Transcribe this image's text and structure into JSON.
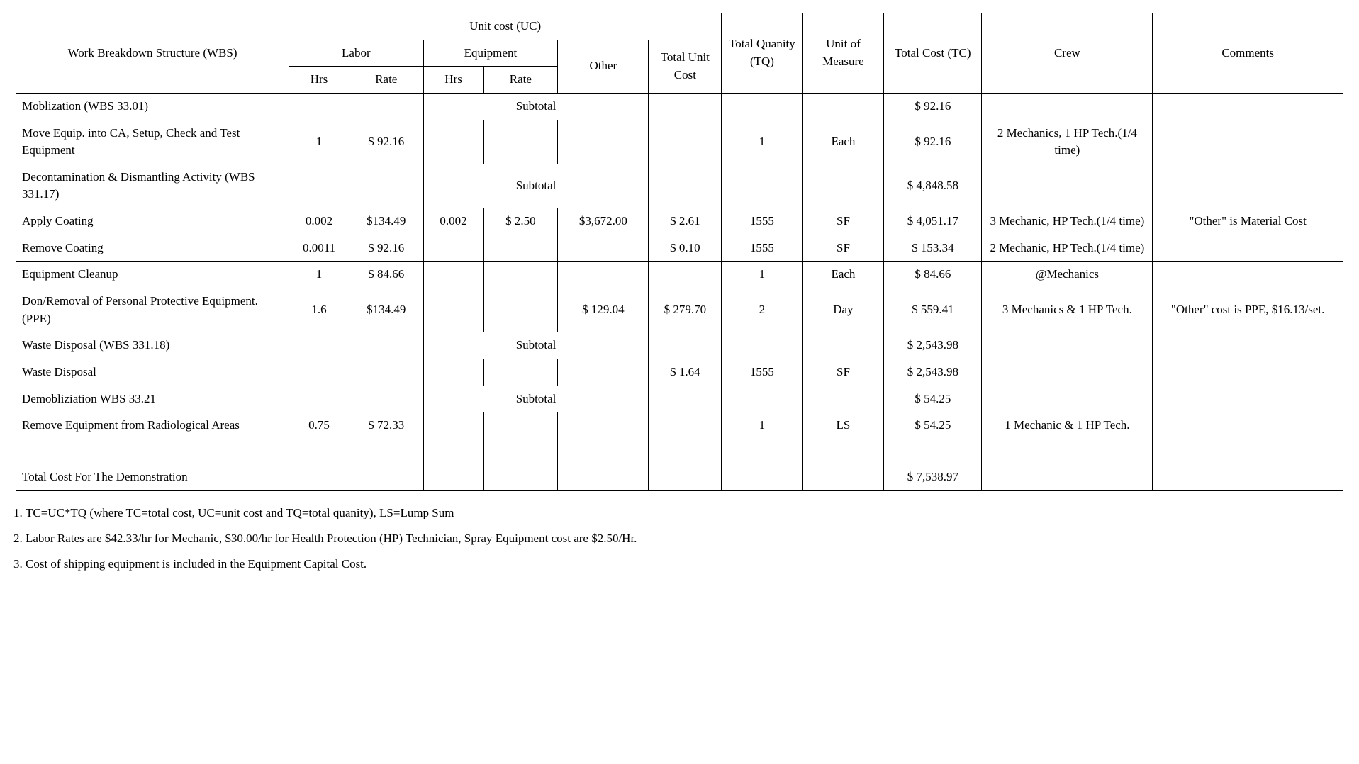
{
  "headers": {
    "wbs": "Work Breakdown Structure (WBS)",
    "uc": "Unit cost (UC)",
    "labor": "Labor",
    "equipment": "Equipment",
    "other": "Other",
    "tuc": "Total Unit Cost",
    "tq": "Total Quanity (TQ)",
    "uom": "Unit of Measure",
    "tc": "Total Cost (TC)",
    "crew": "Crew",
    "comments": "Comments",
    "hrs": "Hrs",
    "rate": "Rate",
    "subtotal": "Subtotal"
  },
  "rows": [
    {
      "type": "subtotal",
      "wbs": "Moblization (WBS 33.01)",
      "tc": "$ 92.16"
    },
    {
      "type": "item",
      "wbs": "Move Equip. into CA, Setup, Check and Test Equipment",
      "lhrs": "1",
      "lrate": "$ 92.16",
      "ehrs": "",
      "erate": "",
      "other": "",
      "tuc": "",
      "tq": "1",
      "uom": "Each",
      "tc": "$ 92.16",
      "crew": "2 Mechanics, 1 HP Tech.(1/4 time)",
      "comments": ""
    },
    {
      "type": "subtotal",
      "wbs": "Decontamination & Dismantling Activity (WBS 331.17)",
      "tc": "$ 4,848.58"
    },
    {
      "type": "item",
      "wbs": "Apply Coating",
      "lhrs": "0.002",
      "lrate": "$134.49",
      "ehrs": "0.002",
      "erate": "$ 2.50",
      "other": "$3,672.00",
      "tuc": "$ 2.61",
      "tq": "1555",
      "uom": "SF",
      "tc": "$ 4,051.17",
      "crew": "3 Mechanic, HP Tech.(1/4 time)",
      "comments": "\"Other\" is Material Cost"
    },
    {
      "type": "item",
      "wbs": "Remove Coating",
      "lhrs": "0.0011",
      "lrate": "$ 92.16",
      "ehrs": "",
      "erate": "",
      "other": "",
      "tuc": "$ 0.10",
      "tq": "1555",
      "uom": "SF",
      "tc": "$ 153.34",
      "crew": "2 Mechanic, HP Tech.(1/4 time)",
      "comments": ""
    },
    {
      "type": "item",
      "wbs": "Equipment Cleanup",
      "lhrs": "1",
      "lrate": "$ 84.66",
      "ehrs": "",
      "erate": "",
      "other": "",
      "tuc": "",
      "tq": "1",
      "uom": "Each",
      "tc": "$ 84.66",
      "crew": "@Mechanics",
      "comments": ""
    },
    {
      "type": "item",
      "wbs": "Don/Removal of Personal Protective Equipment. (PPE)",
      "lhrs": "1.6",
      "lrate": "$134.49",
      "ehrs": "",
      "erate": "",
      "other": "$ 129.04",
      "tuc": "$ 279.70",
      "tq": "2",
      "uom": "Day",
      "tc": "$ 559.41",
      "crew": "3 Mechanics & 1 HP Tech.",
      "comments": "\"Other\" cost is PPE, $16.13/set."
    },
    {
      "type": "subtotal",
      "wbs": "Waste Disposal (WBS 331.18)",
      "tc": "$ 2,543.98"
    },
    {
      "type": "item",
      "wbs": "Waste Disposal",
      "lhrs": "",
      "lrate": "",
      "ehrs": "",
      "erate": "",
      "other": "",
      "tuc": "$ 1.64",
      "tq": "1555",
      "uom": "SF",
      "tc": "$ 2,543.98",
      "crew": "",
      "comments": ""
    },
    {
      "type": "subtotal",
      "wbs": "Demobliziation WBS 33.21",
      "tc": "$ 54.25"
    },
    {
      "type": "item",
      "wbs": "Remove Equipment from Radiological Areas",
      "lhrs": "0.75",
      "lrate": "$ 72.33",
      "ehrs": "",
      "erate": "",
      "other": "",
      "tuc": "",
      "tq": "1",
      "uom": "LS",
      "tc": "$ 54.25",
      "crew": "1 Mechanic & 1 HP Tech.",
      "comments": ""
    },
    {
      "type": "blank"
    },
    {
      "type": "item",
      "wbs": "Total Cost For The Demonstration",
      "lhrs": "",
      "lrate": "",
      "ehrs": "",
      "erate": "",
      "other": "",
      "tuc": "",
      "tq": "",
      "uom": "",
      "tc": "$ 7,538.97",
      "crew": "",
      "comments": ""
    }
  ],
  "notes": [
    "TC=UC*TQ (where TC=total cost, UC=unit cost and TQ=total quanity), LS=Lump Sum",
    "Labor Rates are $42.33/hr for Mechanic, $30.00/hr for Health Protection (HP) Technician, Spray Equipment cost are $2.50/Hr.",
    "Cost of shipping equipment is included in the Equipment Capital Cost."
  ],
  "style": {
    "font_family": "Georgia, 'Times New Roman', serif",
    "font_size_pt": 13,
    "border_color": "#000000",
    "background_color": "#ffffff",
    "text_color": "#000000"
  }
}
